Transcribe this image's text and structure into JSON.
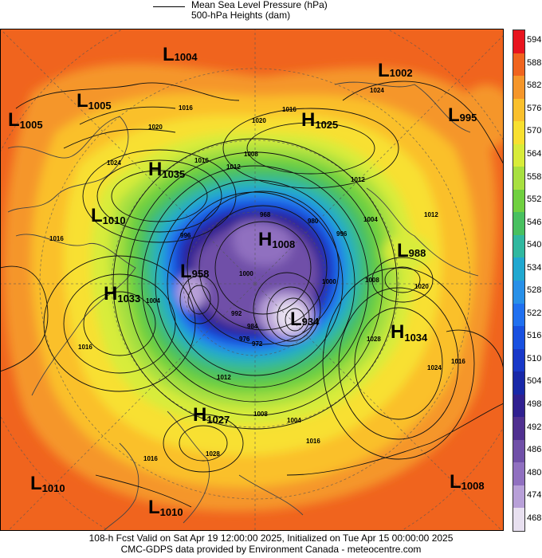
{
  "legend": {
    "mslp_label": "Mean Sea Level Pressure (hPa)",
    "heights_label": "500-hPa Heights (dam)"
  },
  "colorbar": {
    "values": [
      "594",
      "588",
      "582",
      "576",
      "570",
      "564",
      "558",
      "552",
      "546",
      "540",
      "534",
      "528",
      "522",
      "516",
      "510",
      "504",
      "498",
      "492",
      "486",
      "480",
      "474",
      "468"
    ],
    "colors": [
      "#e8141e",
      "#f0641e",
      "#f5962a",
      "#fac02c",
      "#f8e030",
      "#d8ec3a",
      "#a8e040",
      "#70d040",
      "#48c060",
      "#30b8a0",
      "#20a8d0",
      "#2890e8",
      "#2070f0",
      "#1850e0",
      "#1838c8",
      "#1828a8",
      "#302090",
      "#503090",
      "#7050a8",
      "#9070c0",
      "#b8a0d8",
      "#e8e0f0"
    ]
  },
  "centers": [
    {
      "type": "L",
      "value": "1004"
    },
    {
      "type": "L",
      "value": "1005"
    },
    {
      "type": "L",
      "value": "1005"
    },
    {
      "type": "H",
      "value": "1025"
    },
    {
      "type": "L",
      "value": "1002"
    },
    {
      "type": "L",
      "value": "995"
    },
    {
      "type": "H",
      "value": "1035"
    },
    {
      "type": "L",
      "value": "1010"
    },
    {
      "type": "H",
      "value": "1008"
    },
    {
      "type": "L",
      "value": "988"
    },
    {
      "type": "L",
      "value": "958"
    },
    {
      "type": "H",
      "value": "1033"
    },
    {
      "type": "L",
      "value": "934"
    },
    {
      "type": "H",
      "value": "1034"
    },
    {
      "type": "H",
      "value": "1027"
    },
    {
      "type": "L",
      "value": "1010"
    },
    {
      "type": "L",
      "value": "1008"
    },
    {
      "type": "L",
      "value": "1010"
    }
  ],
  "isobar_labels": [
    "1016",
    "1020",
    "1024",
    "1016",
    "1008",
    "1012",
    "1016",
    "1020",
    "1024",
    "1012",
    "1004",
    "996",
    "1012",
    "1016",
    "1004",
    "996",
    "1000",
    "1008",
    "1020",
    "1028",
    "1024",
    "1016",
    "1016",
    "1012",
    "1008",
    "1004",
    "1016",
    "1028",
    "1016",
    "992",
    "984",
    "976",
    "968",
    "972",
    "980",
    "1000"
  ],
  "footer": {
    "line1": "108-h Fcst Valid on Sat Apr 19 12:00:00 2025, Initialized on Tue Apr 15 00:00:00 2025",
    "line2": "CMC-GDPS data provided by Environment Canada - meteocentre.com"
  }
}
